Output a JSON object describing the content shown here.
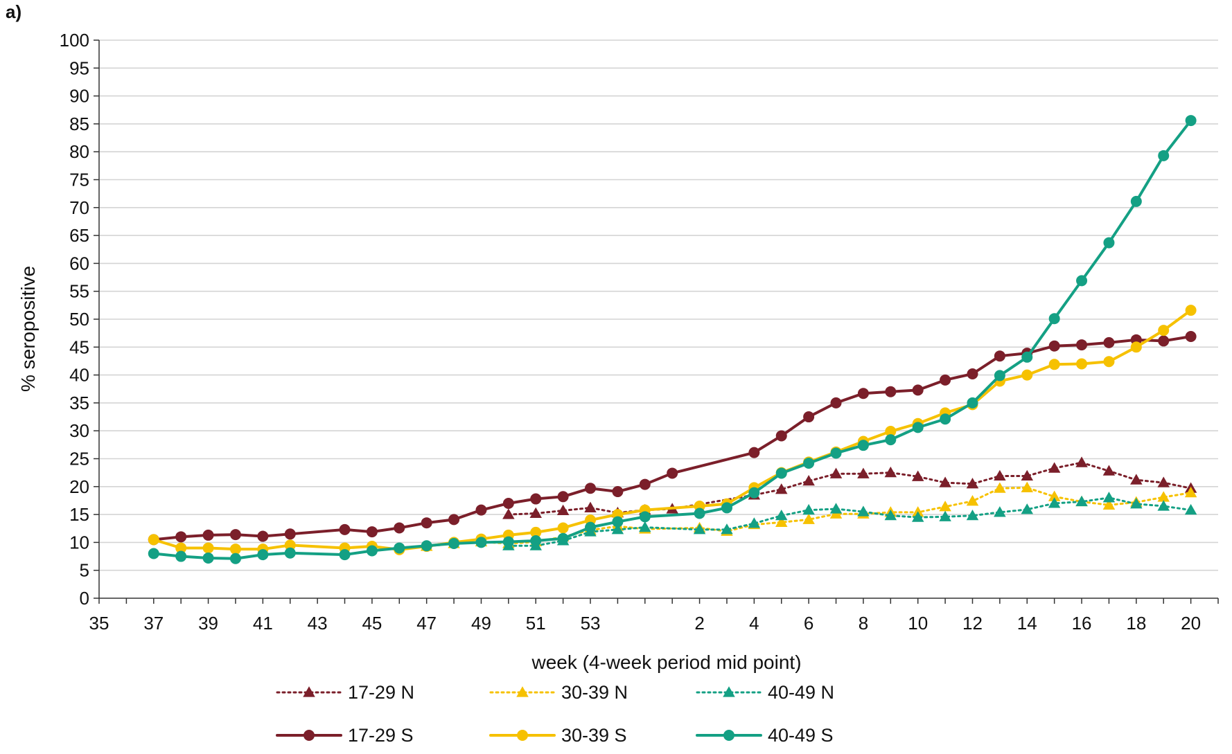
{
  "chart_data": {
    "type": "line",
    "panel_label": "a)",
    "xlabel": "week (4-week period mid point)",
    "ylabel": "% seropositive",
    "ylim": [
      0,
      100
    ],
    "y_ticks": [
      0,
      5,
      10,
      15,
      20,
      25,
      30,
      35,
      40,
      45,
      50,
      55,
      60,
      65,
      70,
      75,
      80,
      85,
      90,
      95,
      100
    ],
    "x_tick_labels": [
      "35",
      "37",
      "39",
      "41",
      "43",
      "45",
      "47",
      "49",
      "51",
      "53",
      "2",
      "4",
      "6",
      "8",
      "10",
      "12",
      "14",
      "16",
      "18",
      "20"
    ],
    "grid": "horizontal",
    "legend_position": "bottom",
    "colors": {
      "17-29": "#7b1f2a",
      "30-39": "#f6c100",
      "40-49": "#14a084"
    },
    "series": [
      {
        "name": "17-29 N",
        "line_style": "dotted",
        "marker": "triangle",
        "color": "#7b1f2a",
        "points": [
          [
            49.5,
            15
          ],
          [
            50.5,
            15.2
          ],
          [
            51.5,
            15.7
          ],
          [
            52.5,
            16.2
          ],
          [
            53.5,
            15.3
          ],
          [
            54.5,
            15.8
          ],
          [
            55.5,
            16
          ],
          [
            3.5,
            18.5
          ],
          [
            4.5,
            19.5
          ],
          [
            5.5,
            21
          ],
          [
            6.5,
            22.3
          ],
          [
            7.5,
            22.3
          ],
          [
            8.5,
            22.5
          ],
          [
            9.5,
            21.8
          ],
          [
            10.5,
            20.7
          ],
          [
            11.5,
            20.5
          ],
          [
            12.5,
            21.9
          ],
          [
            13.5,
            21.9
          ],
          [
            14.5,
            23.3
          ],
          [
            15.5,
            24.3
          ],
          [
            16.5,
            22.8
          ],
          [
            17.5,
            21.2
          ],
          [
            18.5,
            20.7
          ],
          [
            19.5,
            19.7
          ]
        ]
      },
      {
        "name": "30-39 N",
        "line_style": "dotted",
        "marker": "triangle",
        "color": "#f6c100",
        "points": [
          [
            46.5,
            9.3
          ],
          [
            47.5,
            9.8
          ],
          [
            48.5,
            10.1
          ],
          [
            49.5,
            9.8
          ],
          [
            50.5,
            10.1
          ],
          [
            51.5,
            11
          ],
          [
            52.5,
            12.2
          ],
          [
            53.5,
            12.9
          ],
          [
            54.5,
            12.4
          ],
          [
            1.5,
            12.6
          ],
          [
            2.5,
            12
          ],
          [
            3.5,
            13.2
          ],
          [
            4.5,
            13.6
          ],
          [
            5.5,
            14.1
          ],
          [
            6.5,
            15.1
          ],
          [
            7.5,
            15.1
          ],
          [
            8.5,
            15.4
          ],
          [
            9.5,
            15.4
          ],
          [
            10.5,
            16.4
          ],
          [
            11.5,
            17.4
          ],
          [
            12.5,
            19.7
          ],
          [
            13.5,
            19.8
          ],
          [
            14.5,
            18.2
          ],
          [
            15.5,
            17.3
          ],
          [
            16.5,
            16.7
          ],
          [
            17.5,
            17.2
          ],
          [
            18.5,
            18.1
          ],
          [
            19.5,
            18.9
          ]
        ]
      },
      {
        "name": "40-49 N",
        "line_style": "dotted",
        "marker": "triangle",
        "color": "#14a084",
        "points": [
          [
            49.5,
            9.4
          ],
          [
            50.5,
            9.4
          ],
          [
            51.5,
            10.3
          ],
          [
            52.5,
            11.9
          ],
          [
            53.5,
            12.3
          ],
          [
            54.5,
            12.7
          ],
          [
            1.5,
            12.3
          ],
          [
            2.5,
            12.3
          ],
          [
            3.5,
            13.4
          ],
          [
            4.5,
            14.8
          ],
          [
            5.5,
            15.8
          ],
          [
            6.5,
            16
          ],
          [
            7.5,
            15.5
          ],
          [
            8.5,
            14.8
          ],
          [
            9.5,
            14.5
          ],
          [
            10.5,
            14.6
          ],
          [
            11.5,
            14.8
          ],
          [
            12.5,
            15.4
          ],
          [
            13.5,
            15.9
          ],
          [
            14.5,
            17
          ],
          [
            15.5,
            17.3
          ],
          [
            16.5,
            18
          ],
          [
            17.5,
            16.9
          ],
          [
            18.5,
            16.5
          ],
          [
            19.5,
            15.8
          ]
        ]
      },
      {
        "name": "17-29 S",
        "line_style": "solid",
        "marker": "circle",
        "color": "#7b1f2a",
        "points": [
          [
            36.5,
            10.5
          ],
          [
            37.5,
            11
          ],
          [
            38.5,
            11.3
          ],
          [
            39.5,
            11.4
          ],
          [
            40.5,
            11.1
          ],
          [
            41.5,
            11.5
          ],
          [
            43.5,
            12.3
          ],
          [
            44.5,
            11.9
          ],
          [
            45.5,
            12.6
          ],
          [
            46.5,
            13.5
          ],
          [
            47.5,
            14.1
          ],
          [
            48.5,
            15.8
          ],
          [
            49.5,
            17
          ],
          [
            50.5,
            17.8
          ],
          [
            51.5,
            18.2
          ],
          [
            52.5,
            19.7
          ],
          [
            53.5,
            19.1
          ],
          [
            54.5,
            20.4
          ],
          [
            55.5,
            22.4
          ],
          [
            3.5,
            26.1
          ],
          [
            4.5,
            29.1
          ],
          [
            5.5,
            32.5
          ],
          [
            6.5,
            35
          ],
          [
            7.5,
            36.7
          ],
          [
            8.5,
            37
          ],
          [
            9.5,
            37.3
          ],
          [
            10.5,
            39.1
          ],
          [
            11.5,
            40.2
          ],
          [
            12.5,
            43.4
          ],
          [
            13.5,
            43.9
          ],
          [
            14.5,
            45.2
          ],
          [
            15.5,
            45.4
          ],
          [
            16.5,
            45.8
          ],
          [
            17.5,
            46.3
          ],
          [
            18.5,
            46.1
          ],
          [
            19.5,
            46.9
          ]
        ]
      },
      {
        "name": "30-39 S",
        "line_style": "solid",
        "marker": "circle",
        "color": "#f6c100",
        "points": [
          [
            36.5,
            10.5
          ],
          [
            37.5,
            9
          ],
          [
            38.5,
            9
          ],
          [
            39.5,
            8.8
          ],
          [
            40.5,
            8.8
          ],
          [
            41.5,
            9.5
          ],
          [
            43.5,
            9
          ],
          [
            44.5,
            9.3
          ],
          [
            45.5,
            8.7
          ],
          [
            46.5,
            9.3
          ],
          [
            47.5,
            10
          ],
          [
            48.5,
            10.6
          ],
          [
            49.5,
            11.3
          ],
          [
            50.5,
            11.8
          ],
          [
            51.5,
            12.6
          ],
          [
            52.5,
            14
          ],
          [
            53.5,
            15
          ],
          [
            54.5,
            15.8
          ],
          [
            1.5,
            16.5
          ],
          [
            2.5,
            16.9
          ],
          [
            3.5,
            19.8
          ],
          [
            4.5,
            22.5
          ],
          [
            5.5,
            24.4
          ],
          [
            6.5,
            26.2
          ],
          [
            7.5,
            28.1
          ],
          [
            8.5,
            29.9
          ],
          [
            9.5,
            31.3
          ],
          [
            10.5,
            33.2
          ],
          [
            11.5,
            34.7
          ],
          [
            12.5,
            38.9
          ],
          [
            13.5,
            40
          ],
          [
            14.5,
            41.9
          ],
          [
            15.5,
            42
          ],
          [
            16.5,
            42.4
          ],
          [
            17.5,
            45
          ],
          [
            18.5,
            48
          ],
          [
            19.5,
            51.6
          ]
        ]
      },
      {
        "name": "40-49 S",
        "line_style": "solid",
        "marker": "circle",
        "color": "#14a084",
        "points": [
          [
            36.5,
            8
          ],
          [
            37.5,
            7.5
          ],
          [
            38.5,
            7.2
          ],
          [
            39.5,
            7.1
          ],
          [
            40.5,
            7.8
          ],
          [
            41.5,
            8.1
          ],
          [
            43.5,
            7.8
          ],
          [
            44.5,
            8.5
          ],
          [
            45.5,
            9
          ],
          [
            46.5,
            9.4
          ],
          [
            47.5,
            9.8
          ],
          [
            48.5,
            10
          ],
          [
            49.5,
            10.1
          ],
          [
            50.5,
            10.3
          ],
          [
            51.5,
            10.7
          ],
          [
            52.5,
            12.7
          ],
          [
            53.5,
            13.7
          ],
          [
            54.5,
            14.6
          ],
          [
            1.5,
            15.2
          ],
          [
            2.5,
            16.2
          ],
          [
            3.5,
            18.9
          ],
          [
            4.5,
            22.4
          ],
          [
            5.5,
            24.2
          ],
          [
            6.5,
            26
          ],
          [
            7.5,
            27.4
          ],
          [
            8.5,
            28.4
          ],
          [
            9.5,
            30.6
          ],
          [
            10.5,
            32.1
          ],
          [
            11.5,
            35
          ],
          [
            12.5,
            39.9
          ],
          [
            13.5,
            43.2
          ],
          [
            14.5,
            50.1
          ],
          [
            15.5,
            56.9
          ],
          [
            16.5,
            63.7
          ],
          [
            17.5,
            71.1
          ],
          [
            18.5,
            79.3
          ],
          [
            19.5,
            85.6
          ]
        ]
      }
    ]
  }
}
